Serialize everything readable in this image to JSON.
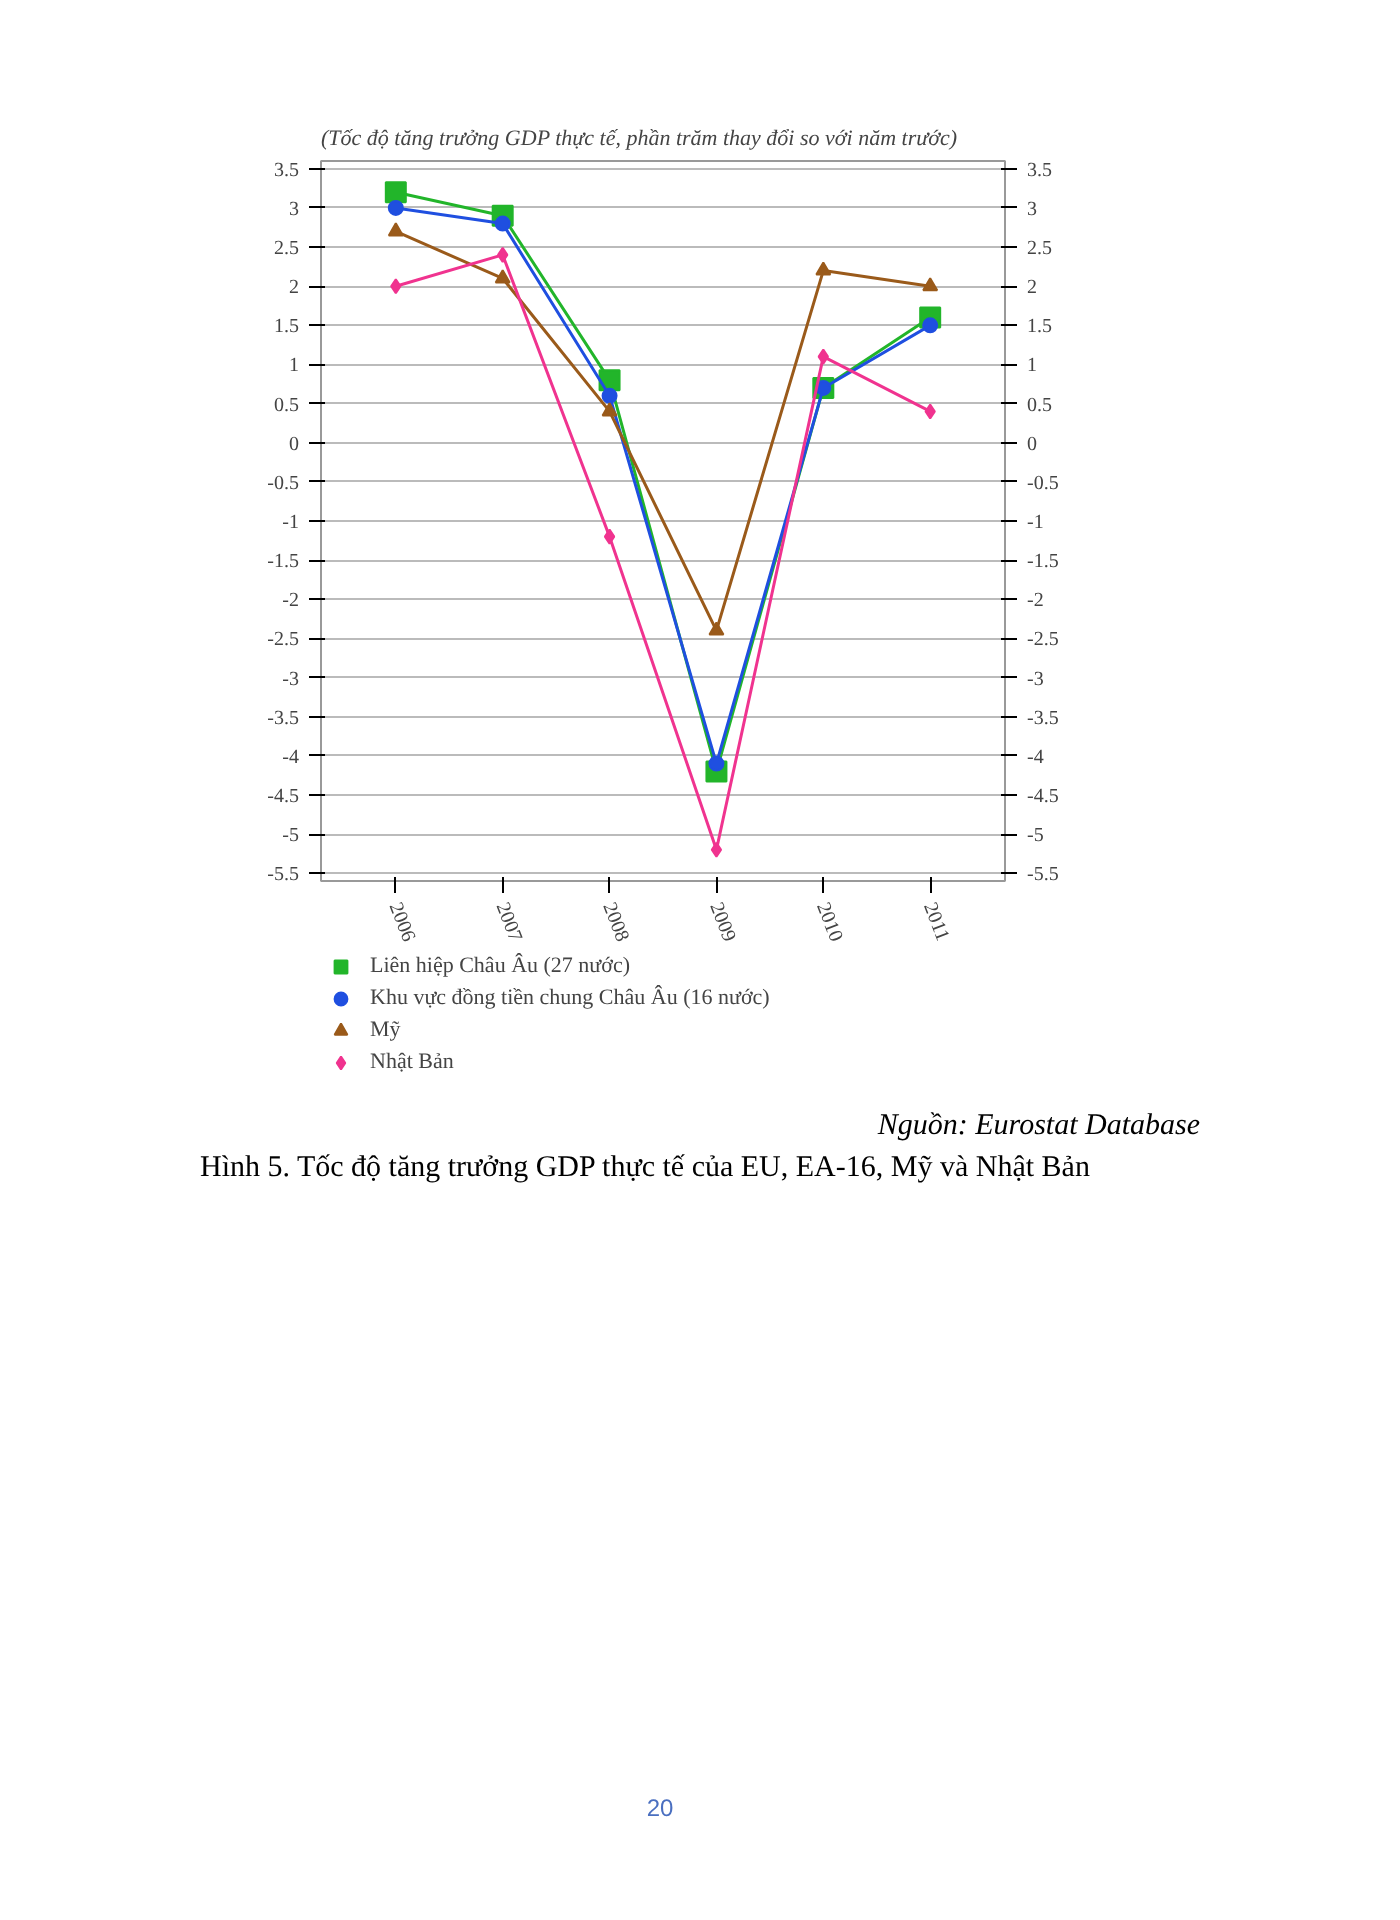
{
  "chart_data": {
    "type": "line",
    "subtitle": "(Tốc độ tăng trưởng GDP thực tế, phần trăm thay đổi so với năm trước)",
    "categories": [
      "2006",
      "2007",
      "2008",
      "2009",
      "2010",
      "2011"
    ],
    "series": [
      {
        "name": "Liên hiệp Châu Âu (27 nước)",
        "color": "#22b52a",
        "marker": "square",
        "values": [
          3.2,
          2.9,
          0.8,
          -4.2,
          0.7,
          1.6
        ]
      },
      {
        "name": "Khu vực đồng tiền chung Châu Âu (16 nước)",
        "color": "#1f4fe0",
        "marker": "circle",
        "values": [
          3.0,
          2.8,
          0.6,
          -4.1,
          0.7,
          1.5
        ]
      },
      {
        "name": "Mỹ",
        "color": "#9a5a1a",
        "marker": "triangle",
        "values": [
          2.7,
          2.1,
          0.4,
          -2.4,
          2.2,
          2.0
        ]
      },
      {
        "name": "Nhật Bản",
        "color": "#f0338f",
        "marker": "diamond",
        "values": [
          2.0,
          2.4,
          -1.2,
          -5.2,
          1.1,
          0.4
        ]
      }
    ],
    "ylim": [
      -5.6,
      3.6
    ],
    "yticks": [
      -5.5,
      -5,
      -4.5,
      -4,
      -3.5,
      -3,
      -2.5,
      -2,
      -1.5,
      -1,
      -0.5,
      0,
      0.5,
      1,
      1.5,
      2,
      2.5,
      3,
      3.5
    ],
    "y2lim": [
      -5.6,
      3.6
    ],
    "y2ticks": [
      -5.5,
      -5,
      -4.5,
      -4,
      -3.5,
      -3,
      -2.5,
      -2,
      -1.5,
      -1,
      -0.5,
      0,
      0.5,
      1,
      1.5,
      2,
      2.5,
      3,
      3.5
    ],
    "grid": "y",
    "legend": "bottom",
    "annotations": [
      "Nguồn: Eurostat Database",
      "Hình 5. Tốc độ tăng trưởng GDP thực tế của EU, EA-16, Mỹ và Nhật Bản",
      "20"
    ]
  }
}
